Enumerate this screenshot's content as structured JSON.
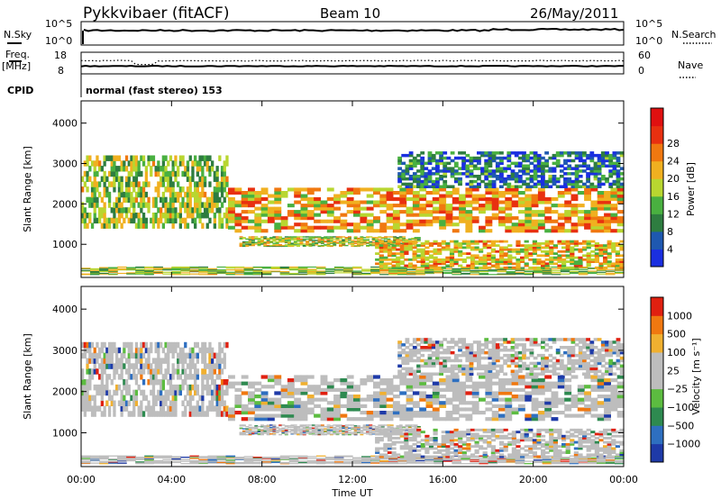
{
  "header": {
    "station": "Pykkvibaer (fitACF)",
    "beam": "Beam 10",
    "date": "26/May/2011"
  },
  "top_panels": {
    "nsky_label": "N.Sky",
    "nsky_ticks": [
      "10^5",
      "10^0"
    ],
    "nsearch_label": "N.Search",
    "nsearch_ticks": [
      "10^5",
      "10^0"
    ],
    "freq_label_1": "Freq.",
    "freq_label_2": "[MHz]",
    "freq_ticks": [
      "18",
      "8"
    ],
    "nave_label": "Nave",
    "nave_ticks": [
      "60",
      "0"
    ],
    "cpid_label": "CPID",
    "cpid_value": "normal (fast stereo) 153"
  },
  "chart_data": [
    {
      "type": "heatmap",
      "name": "power",
      "ylabel": "Slant Range [km]",
      "xlabel": "Time UT",
      "ylim": [
        180,
        4550
      ],
      "y_ticks": [
        "1000",
        "2000",
        "3000",
        "4000"
      ],
      "y_tick_values": [
        1000,
        2000,
        3000,
        4000
      ],
      "x_ticks": [
        "00:00",
        "04:00",
        "08:00",
        "12:00",
        "16:00",
        "20:00",
        "00:00"
      ],
      "colorbar": {
        "label": "Power [dB]",
        "ticks": [
          "4",
          "8",
          "12",
          "16",
          "20",
          "24",
          "28"
        ],
        "colors": [
          "#1a2fe0",
          "#1e58b0",
          "#2e7d40",
          "#49b040",
          "#b8d630",
          "#f0b020",
          "#f07810",
          "#e83010",
          "#e01010"
        ]
      },
      "echo_bands": [
        {
          "t0": 0,
          "t1": 24,
          "r0": 250,
          "r1": 450,
          "level": 0.45
        },
        {
          "t0": 0,
          "t1": 6.5,
          "r0": 1400,
          "r1": 3200,
          "level": 0.45
        },
        {
          "t0": 6.5,
          "t1": 24,
          "r0": 1300,
          "r1": 2400,
          "level": 0.65
        },
        {
          "t0": 7,
          "t1": 15,
          "r0": 950,
          "r1": 1200,
          "level": 0.5
        },
        {
          "t0": 13,
          "t1": 24,
          "r0": 400,
          "r1": 1100,
          "level": 0.6
        },
        {
          "t0": 14,
          "t1": 24,
          "r0": 2400,
          "r1": 3300,
          "level": 0.2
        }
      ]
    },
    {
      "type": "heatmap",
      "name": "velocity",
      "ylabel": "Slant Range [km]",
      "xlabel": "Time UT",
      "ylim": [
        180,
        4550
      ],
      "y_ticks": [
        "1000",
        "2000",
        "3000",
        "4000"
      ],
      "y_tick_values": [
        1000,
        2000,
        3000,
        4000
      ],
      "x_ticks": [
        "00:00",
        "04:00",
        "08:00",
        "12:00",
        "16:00",
        "20:00",
        "00:00"
      ],
      "colorbar": {
        "label": "Velocity [m s⁻¹]",
        "ticks": [
          "1000",
          "500",
          "100",
          "25",
          "−25",
          "−100",
          "−500",
          "−1000"
        ],
        "colors": [
          "#1e3aa8",
          "#2e6fc0",
          "#2e8a50",
          "#5cbc40",
          "#bdbdbd",
          "#bdbdbd",
          "#f0b030",
          "#f07810",
          "#e02010"
        ]
      },
      "echo_bands": [
        {
          "t0": 0,
          "t1": 24,
          "r0": 250,
          "r1": 450,
          "level": 0.45
        },
        {
          "t0": 0,
          "t1": 6.5,
          "r0": 1400,
          "r1": 3200,
          "level": 0.45
        },
        {
          "t0": 6.5,
          "t1": 24,
          "r0": 1300,
          "r1": 2400,
          "level": 0.65
        },
        {
          "t0": 7,
          "t1": 15,
          "r0": 950,
          "r1": 1200,
          "level": 0.5
        },
        {
          "t0": 13,
          "t1": 24,
          "r0": 400,
          "r1": 1100,
          "level": 0.6
        },
        {
          "t0": 14,
          "t1": 24,
          "r0": 2400,
          "r1": 3300,
          "level": 0.2
        }
      ]
    }
  ],
  "xaxis": {
    "label": "Time UT",
    "ticks": [
      "00:00",
      "04:00",
      "08:00",
      "12:00",
      "16:00",
      "20:00",
      "00:00"
    ]
  }
}
